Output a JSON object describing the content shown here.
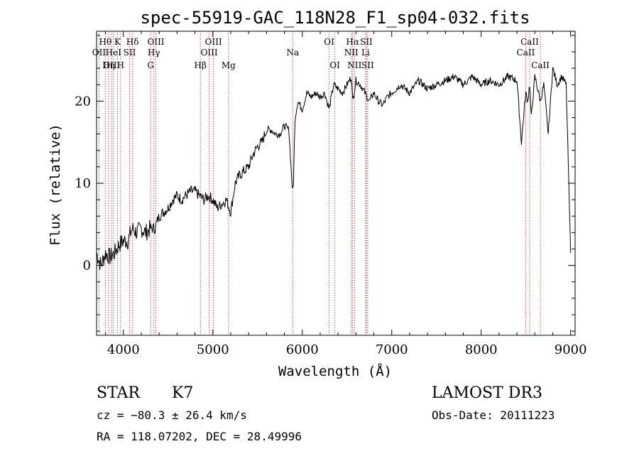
{
  "chart_data": {
    "type": "line",
    "title": "spec-55919-GAC_118N28_F1_sp04-032.fits",
    "xlabel": "Wavelength (Å)",
    "ylabel": "Flux (relative)",
    "xlim": [
      3700,
      9050
    ],
    "ylim": [
      -8.5,
      28.5
    ],
    "xticks": [
      4000,
      5000,
      6000,
      7000,
      8000,
      9000
    ],
    "yticks": [
      0,
      10,
      20
    ],
    "series": [
      {
        "name": "spectrum",
        "color": "#000000",
        "x": [
          3700,
          3750,
          3800,
          3850,
          3900,
          3950,
          4000,
          4050,
          4100,
          4150,
          4200,
          4250,
          4300,
          4350,
          4400,
          4450,
          4500,
          4550,
          4600,
          4650,
          4700,
          4750,
          4800,
          4850,
          4900,
          4950,
          5000,
          5050,
          5100,
          5150,
          5200,
          5250,
          5300,
          5350,
          5400,
          5450,
          5500,
          5550,
          5600,
          5650,
          5700,
          5750,
          5800,
          5850,
          5890,
          5900,
          5920,
          5950,
          6000,
          6050,
          6100,
          6150,
          6200,
          6250,
          6300,
          6350,
          6400,
          6450,
          6500,
          6550,
          6563,
          6600,
          6650,
          6700,
          6750,
          6800,
          6850,
          6900,
          6950,
          7000,
          7100,
          7200,
          7300,
          7400,
          7500,
          7600,
          7700,
          7800,
          7900,
          8000,
          8100,
          8200,
          8300,
          8400,
          8450,
          8498,
          8520,
          8542,
          8560,
          8600,
          8662,
          8700,
          8750,
          8800,
          8850,
          8900,
          8950,
          9000
        ],
        "y": [
          1.5,
          0,
          1.5,
          1,
          1.5,
          2.5,
          3,
          3,
          4.5,
          4,
          4.5,
          4,
          4.5,
          4.5,
          6,
          6.5,
          7,
          8,
          8.5,
          8,
          8.5,
          9,
          9,
          8.5,
          8,
          8.5,
          8,
          7,
          7.5,
          8,
          6.5,
          10,
          11,
          11.5,
          12,
          13.5,
          14.5,
          15,
          16.5,
          16.5,
          16,
          16,
          17,
          16.5,
          9,
          10,
          18,
          20,
          19,
          21,
          20.5,
          21,
          20.5,
          21,
          19,
          22,
          21.5,
          21,
          22,
          23,
          20,
          22.5,
          22,
          21,
          20,
          21,
          20,
          19.5,
          20.5,
          21,
          22,
          21,
          22.5,
          21.5,
          22,
          22.5,
          23,
          22,
          23,
          22,
          22.5,
          22,
          23,
          22.5,
          15,
          21,
          20,
          22,
          18,
          23,
          20,
          22,
          16,
          24,
          22,
          23,
          22,
          1.5
        ]
      }
    ],
    "lines": [
      {
        "label": "Hθ",
        "x": 3798,
        "row": 1
      },
      {
        "label": "OII",
        "x": 3727,
        "row": 2
      },
      {
        "label": "OIII",
        "x": 3869,
        "row": 3
      },
      {
        "label": "K",
        "x": 3934,
        "row": 1
      },
      {
        "label": "HeI",
        "x": 3889,
        "row": 2
      },
      {
        "label": "Hη",
        "x": 3835,
        "row": 3
      },
      {
        "label": "H",
        "x": 3969,
        "row": 3
      },
      {
        "label": "Hδ",
        "x": 4102,
        "row": 1
      },
      {
        "label": "SII",
        "x": 4069,
        "row": 2
      },
      {
        "label": "OIII",
        "x": 4363,
        "row": 1
      },
      {
        "label": "Hγ",
        "x": 4341,
        "row": 2
      },
      {
        "label": "G",
        "x": 4305,
        "row": 3
      },
      {
        "label": "OIII",
        "x": 5007,
        "row": 1
      },
      {
        "label": "OIII",
        "x": 4959,
        "row": 2
      },
      {
        "label": "Hβ",
        "x": 4861,
        "row": 3
      },
      {
        "label": "Mg",
        "x": 5175,
        "row": 3
      },
      {
        "label": "Na",
        "x": 5893,
        "row": 2
      },
      {
        "label": "OI",
        "x": 6300,
        "row": 1
      },
      {
        "label": "OI",
        "x": 6364,
        "row": 3
      },
      {
        "label": "Hα",
        "x": 6563,
        "row": 1
      },
      {
        "label": "SII",
        "x": 6716,
        "row": 1
      },
      {
        "label": "NII",
        "x": 6548,
        "row": 2
      },
      {
        "label": "Li",
        "x": 6708,
        "row": 2
      },
      {
        "label": "NII",
        "x": 6584,
        "row": 3
      },
      {
        "label": "SII",
        "x": 6731,
        "row": 3
      },
      {
        "label": "CaII",
        "x": 8542,
        "row": 1
      },
      {
        "label": "CaII",
        "x": 8498,
        "row": 2
      },
      {
        "label": "CaII",
        "x": 8662,
        "row": 3
      }
    ]
  },
  "info": {
    "class": "STAR",
    "subclass": "K7",
    "survey": "LAMOST DR3",
    "redshift": "cz = −80.3 ± 26.4 km/s",
    "obs_date": "Obs-Date: 20111223",
    "coords": "RA = 118.07202, DEC =  28.49996"
  }
}
